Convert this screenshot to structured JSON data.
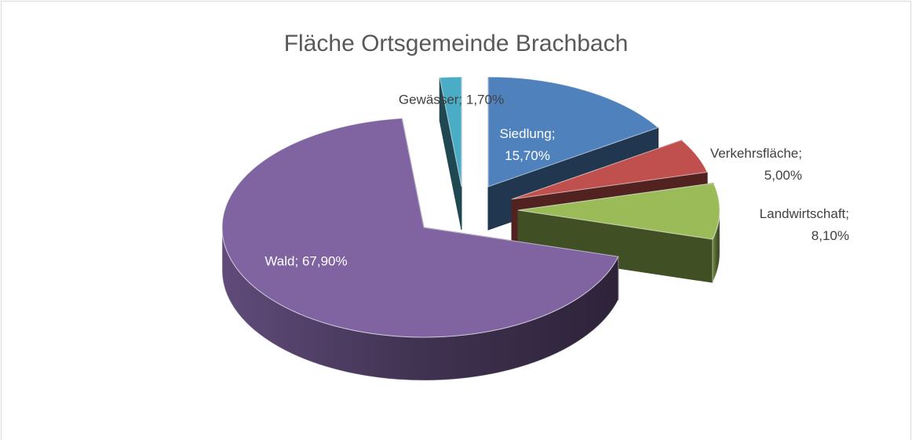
{
  "chart_data": {
    "type": "pie3d",
    "title": "Fläche Ortsgemeinde Brachbach",
    "values": [
      15.7,
      5.0,
      8.1,
      67.9,
      1.7
    ],
    "value_labels": [
      "Siedlung; 15,70%",
      "Verkehrsfläche; 5,00%",
      "Landwirtschaft; 8,10%",
      "Wald; 67,90%",
      "Gewässer; 1,70%"
    ],
    "colors": [
      "#4f81bd",
      "#c0504d",
      "#9bbb59",
      "#8064a2",
      "#4bacc6"
    ]
  }
}
